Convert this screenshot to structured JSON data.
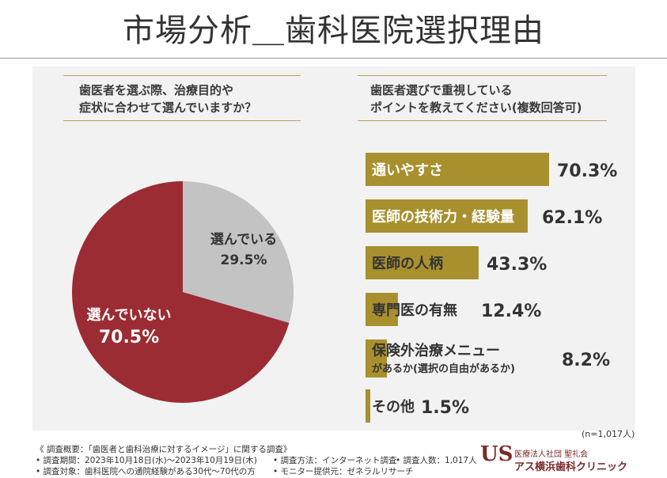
{
  "title": "市場分析＿歯科医院選択理由",
  "left_question": [
    "歯医者を選ぶ際、治療目的や",
    "症状に合わせて選んでいますか？"
  ],
  "right_question": [
    "歯医者選びで重視している",
    "ポイントを教えてください(複数回答可)"
  ],
  "sample_size": "(n=1,017人)",
  "colors": {
    "pie_no": "#9b2c34",
    "pie_yes": "#c3c3c3",
    "bar": "#a8902e",
    "bar_text": "#ffffff",
    "value_text": "#333333"
  },
  "chart_data": [
    {
      "type": "pie",
      "title": "歯医者を選ぶ際、治療目的や症状に合わせて選んでいますか？",
      "slices": [
        {
          "label": "選んでいる",
          "value": 29.5,
          "display": "29.5%",
          "color": "#c3c3c3"
        },
        {
          "label": "選んでいない",
          "value": 70.5,
          "display": "70.5%",
          "color": "#9b2c34"
        }
      ]
    },
    {
      "type": "bar",
      "orientation": "horizontal",
      "title": "歯医者選びで重視しているポイントを教えてください(複数回答可)",
      "categories": [
        "通いやすさ",
        "医師の技術力・経験量",
        "医師の人柄",
        "専門医の有無",
        "保険外治療メニューがあるか(選択の自由があるか)",
        "その他"
      ],
      "category_lines": [
        [
          "通いやすさ"
        ],
        [
          "医師の技術力・経験量"
        ],
        [
          "医師の人柄"
        ],
        [
          "専門医の有無"
        ],
        [
          "保険外治療メニュー",
          "があるか(選択の自由があるか)"
        ],
        [
          "その他"
        ]
      ],
      "values": [
        70.3,
        62.1,
        43.3,
        12.4,
        8.2,
        1.5
      ],
      "value_labels": [
        "70.3%",
        "62.1%",
        "43.3%",
        "12.4%",
        "8.2%",
        "1.5%"
      ],
      "xlim": [
        0,
        100
      ]
    }
  ],
  "footer": {
    "summary": "《 調査概要：「歯医者と歯科治療に対するイメージ」に関する調査》",
    "period": "• 調査期間：2023年10月18日(水)〜2023年10月19日(木)",
    "method": "• 調査方法：インターネット調査",
    "count": "• 調査人数：1,017人",
    "target": "• 調査対象：歯科医院への通院経験がある30代〜70代の方",
    "provider": "• モニター提供元：ゼネラルリサーチ"
  },
  "logo": {
    "mark": "US",
    "sub": "医療法人社団 聖礼会",
    "name": "アス横浜歯科クリニック"
  }
}
